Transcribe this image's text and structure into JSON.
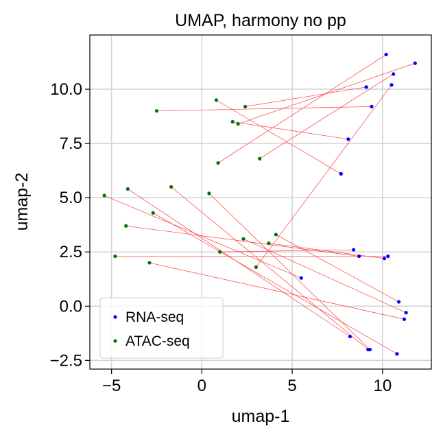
{
  "chart_data": {
    "type": "scatter",
    "title": "UMAP, harmony no pp",
    "xlabel": "umap-1",
    "ylabel": "umap-2",
    "xlim": [
      -6.2,
      12.7
    ],
    "ylim": [
      -2.9,
      12.5
    ],
    "xticks": [
      -5,
      0,
      5,
      10
    ],
    "xtick_labels": [
      "−5",
      "0",
      "5",
      "10"
    ],
    "yticks": [
      -2.5,
      0.0,
      2.5,
      5.0,
      7.5,
      10.0
    ],
    "ytick_labels": [
      "−2.5",
      "0.0",
      "2.5",
      "5.0",
      "7.5",
      "10.0"
    ],
    "grid": true,
    "legend_position": "lower-left",
    "series": [
      {
        "name": "RNA-seq",
        "color": "#0000ff",
        "points": [
          [
            10.2,
            11.6
          ],
          [
            11.8,
            11.2
          ],
          [
            10.6,
            10.7
          ],
          [
            10.5,
            10.2
          ],
          [
            9.1,
            10.1
          ],
          [
            9.4,
            9.2
          ],
          [
            8.1,
            7.7
          ],
          [
            7.7,
            6.1
          ],
          [
            8.4,
            2.6
          ],
          [
            8.7,
            2.3
          ],
          [
            10.3,
            2.3
          ],
          [
            10.1,
            2.2
          ],
          [
            5.5,
            1.3
          ],
          [
            10.9,
            0.2
          ],
          [
            11.3,
            -0.3
          ],
          [
            11.2,
            -0.6
          ],
          [
            8.2,
            -1.4
          ],
          [
            9.2,
            -2.0
          ],
          [
            9.3,
            -2.0
          ],
          [
            10.8,
            -2.2
          ]
        ]
      },
      {
        "name": "ATAC-seq",
        "color": "#007300",
        "points": [
          [
            0.8,
            9.5
          ],
          [
            2.4,
            9.2
          ],
          [
            -2.5,
            9.0
          ],
          [
            1.7,
            8.5
          ],
          [
            2.0,
            8.4
          ],
          [
            3.2,
            6.8
          ],
          [
            0.9,
            6.6
          ],
          [
            -1.7,
            5.5
          ],
          [
            -4.1,
            5.4
          ],
          [
            0.4,
            5.2
          ],
          [
            -5.4,
            5.1
          ],
          [
            -2.7,
            4.3
          ],
          [
            -4.2,
            3.7
          ],
          [
            4.1,
            3.3
          ],
          [
            2.3,
            3.1
          ],
          [
            3.7,
            2.9
          ],
          [
            1.0,
            2.5
          ],
          [
            -4.8,
            2.3
          ],
          [
            -2.9,
            2.0
          ],
          [
            3.0,
            1.8
          ]
        ]
      }
    ],
    "links": {
      "color": "#ff3b3b",
      "segments": [
        [
          [
            0.8,
            9.5
          ],
          [
            7.7,
            6.1
          ]
        ],
        [
          [
            2.4,
            9.2
          ],
          [
            9.1,
            10.1
          ]
        ],
        [
          [
            -2.5,
            9.0
          ],
          [
            9.4,
            9.2
          ]
        ],
        [
          [
            1.7,
            8.5
          ],
          [
            8.1,
            7.7
          ]
        ],
        [
          [
            2.0,
            8.4
          ],
          [
            11.8,
            11.2
          ]
        ],
        [
          [
            3.2,
            6.8
          ],
          [
            10.6,
            10.7
          ]
        ],
        [
          [
            0.9,
            6.6
          ],
          [
            10.2,
            11.6
          ]
        ],
        [
          [
            3.0,
            1.8
          ],
          [
            10.5,
            10.2
          ]
        ],
        [
          [
            -1.7,
            5.5
          ],
          [
            9.2,
            -2.0
          ]
        ],
        [
          [
            -4.1,
            5.4
          ],
          [
            8.2,
            -1.4
          ]
        ],
        [
          [
            0.4,
            5.2
          ],
          [
            9.3,
            -2.0
          ]
        ],
        [
          [
            -5.4,
            5.1
          ],
          [
            5.5,
            1.3
          ]
        ],
        [
          [
            -2.7,
            4.3
          ],
          [
            10.8,
            -2.2
          ]
        ],
        [
          [
            -4.2,
            3.7
          ],
          [
            8.7,
            2.3
          ]
        ],
        [
          [
            4.1,
            3.3
          ],
          [
            10.9,
            0.2
          ]
        ],
        [
          [
            2.3,
            3.1
          ],
          [
            11.3,
            -0.3
          ]
        ],
        [
          [
            3.7,
            2.9
          ],
          [
            10.1,
            2.2
          ]
        ],
        [
          [
            1.0,
            2.5
          ],
          [
            8.4,
            2.6
          ]
        ],
        [
          [
            -4.8,
            2.3
          ],
          [
            10.3,
            2.3
          ]
        ],
        [
          [
            -2.9,
            2.0
          ],
          [
            11.2,
            -0.6
          ]
        ]
      ]
    }
  }
}
